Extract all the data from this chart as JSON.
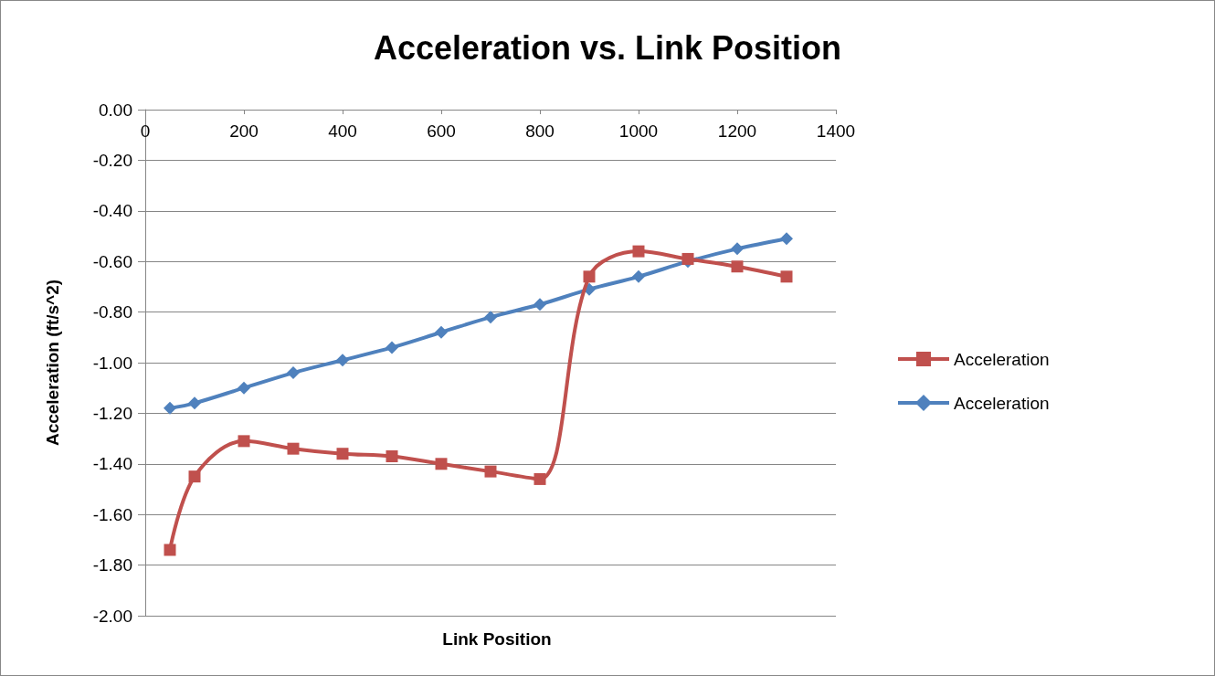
{
  "chart_data": {
    "type": "line",
    "title": "Acceleration vs. Link Position",
    "xlabel": "Link Position",
    "ylabel": "Acceleration (ft/s^2)",
    "x": [
      50,
      100,
      200,
      300,
      400,
      500,
      600,
      700,
      800,
      900,
      1000,
      1100,
      1200,
      1300
    ],
    "series": [
      {
        "name": "Acceleration",
        "color": "#c0504d",
        "marker": "square",
        "values": [
          -1.74,
          -1.45,
          -1.31,
          -1.34,
          -1.36,
          -1.37,
          -1.4,
          -1.43,
          -1.46,
          -0.66,
          -0.56,
          -0.59,
          -0.62,
          -0.66
        ]
      },
      {
        "name": "Acceleration",
        "color": "#4f81bd",
        "marker": "diamond",
        "values": [
          -1.18,
          -1.16,
          -1.1,
          -1.04,
          -0.99,
          -0.94,
          -0.88,
          -0.82,
          -0.77,
          -0.71,
          -0.66,
          -0.6,
          -0.55,
          -0.51
        ]
      }
    ],
    "xlim": [
      0,
      1400
    ],
    "xticks": [
      0,
      200,
      400,
      600,
      800,
      1000,
      1200,
      1400
    ],
    "ylim": [
      -2,
      0
    ],
    "yticks": [
      {
        "value": -2,
        "label": "-2.00"
      },
      {
        "value": -1.8,
        "label": "-1.80"
      },
      {
        "value": -1.6,
        "label": "-1.60"
      },
      {
        "value": -1.4,
        "label": "-1.40"
      },
      {
        "value": -1.2,
        "label": "-1.20"
      },
      {
        "value": -1,
        "label": "-1.00"
      },
      {
        "value": -0.8,
        "label": "-0.80"
      },
      {
        "value": -0.6,
        "label": "-0.60"
      },
      {
        "value": -0.4,
        "label": "-0.40"
      },
      {
        "value": -0.2,
        "label": "-0.20"
      },
      {
        "value": 0,
        "label": "0.00"
      }
    ],
    "grid": "y",
    "legend": "right",
    "line_style": "solid"
  }
}
